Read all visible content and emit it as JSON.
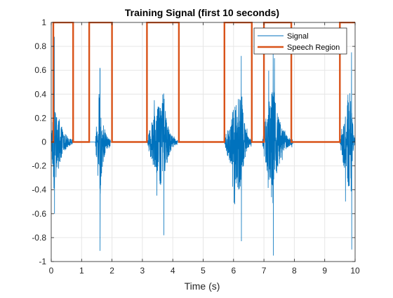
{
  "chart_data": {
    "type": "line",
    "title": "Training Signal (first 10 seconds)",
    "xlabel": "Time (s)",
    "ylabel": "",
    "xlim": [
      0,
      10
    ],
    "ylim": [
      -1,
      1
    ],
    "xticks": [
      0,
      1,
      2,
      3,
      4,
      5,
      6,
      7,
      8,
      9,
      10
    ],
    "yticks": [
      -1,
      -0.8,
      -0.6,
      -0.4,
      -0.2,
      0,
      0.2,
      0.4,
      0.6,
      0.8,
      1
    ],
    "xtick_labels": [
      "0",
      "1",
      "2",
      "3",
      "4",
      "5",
      "6",
      "7",
      "8",
      "9",
      "10"
    ],
    "ytick_labels": [
      "-1",
      "-0.8",
      "-0.6",
      "-0.4",
      "-0.2",
      "0",
      "0.2",
      "0.4",
      "0.6",
      "0.8",
      "1"
    ],
    "grid": true,
    "legend_position": "top-right",
    "series": [
      {
        "name": "Signal",
        "color": "#0072BD",
        "style": "noisy-waveform",
        "bursts": [
          {
            "start": 0.0,
            "peak": 0.1,
            "end": 0.7,
            "max": 0.88,
            "min": -0.6
          },
          {
            "start": 1.45,
            "peak": 1.6,
            "end": 1.95,
            "max": 0.62,
            "min": -0.91
          },
          {
            "start": 3.15,
            "peak": 3.7,
            "end": 4.15,
            "max": 0.25,
            "min": -0.78
          },
          {
            "start": 5.7,
            "peak": 6.25,
            "end": 6.6,
            "max": 0.72,
            "min": -0.83
          },
          {
            "start": 6.95,
            "peak": 7.3,
            "end": 7.95,
            "max": 0.75,
            "min": -0.95
          },
          {
            "start": 9.5,
            "peak": 9.88,
            "end": 10.0,
            "max": 0.75,
            "min": -0.9
          }
        ]
      },
      {
        "name": "Speech Region",
        "color": "#D95319",
        "x": [
          0,
          0.07,
          0.07,
          0.72,
          0.72,
          1.25,
          1.25,
          2.0,
          2.0,
          3.15,
          3.15,
          4.2,
          4.2,
          5.7,
          5.7,
          6.6,
          6.6,
          7.0,
          7.0,
          7.9,
          7.9,
          9.5,
          9.5,
          10.0
        ],
        "y": [
          0,
          0,
          1,
          1,
          0,
          0,
          1,
          1,
          0,
          0,
          1,
          1,
          0,
          0,
          1,
          1,
          0,
          0,
          1,
          1,
          0,
          0,
          1,
          1
        ]
      }
    ]
  }
}
